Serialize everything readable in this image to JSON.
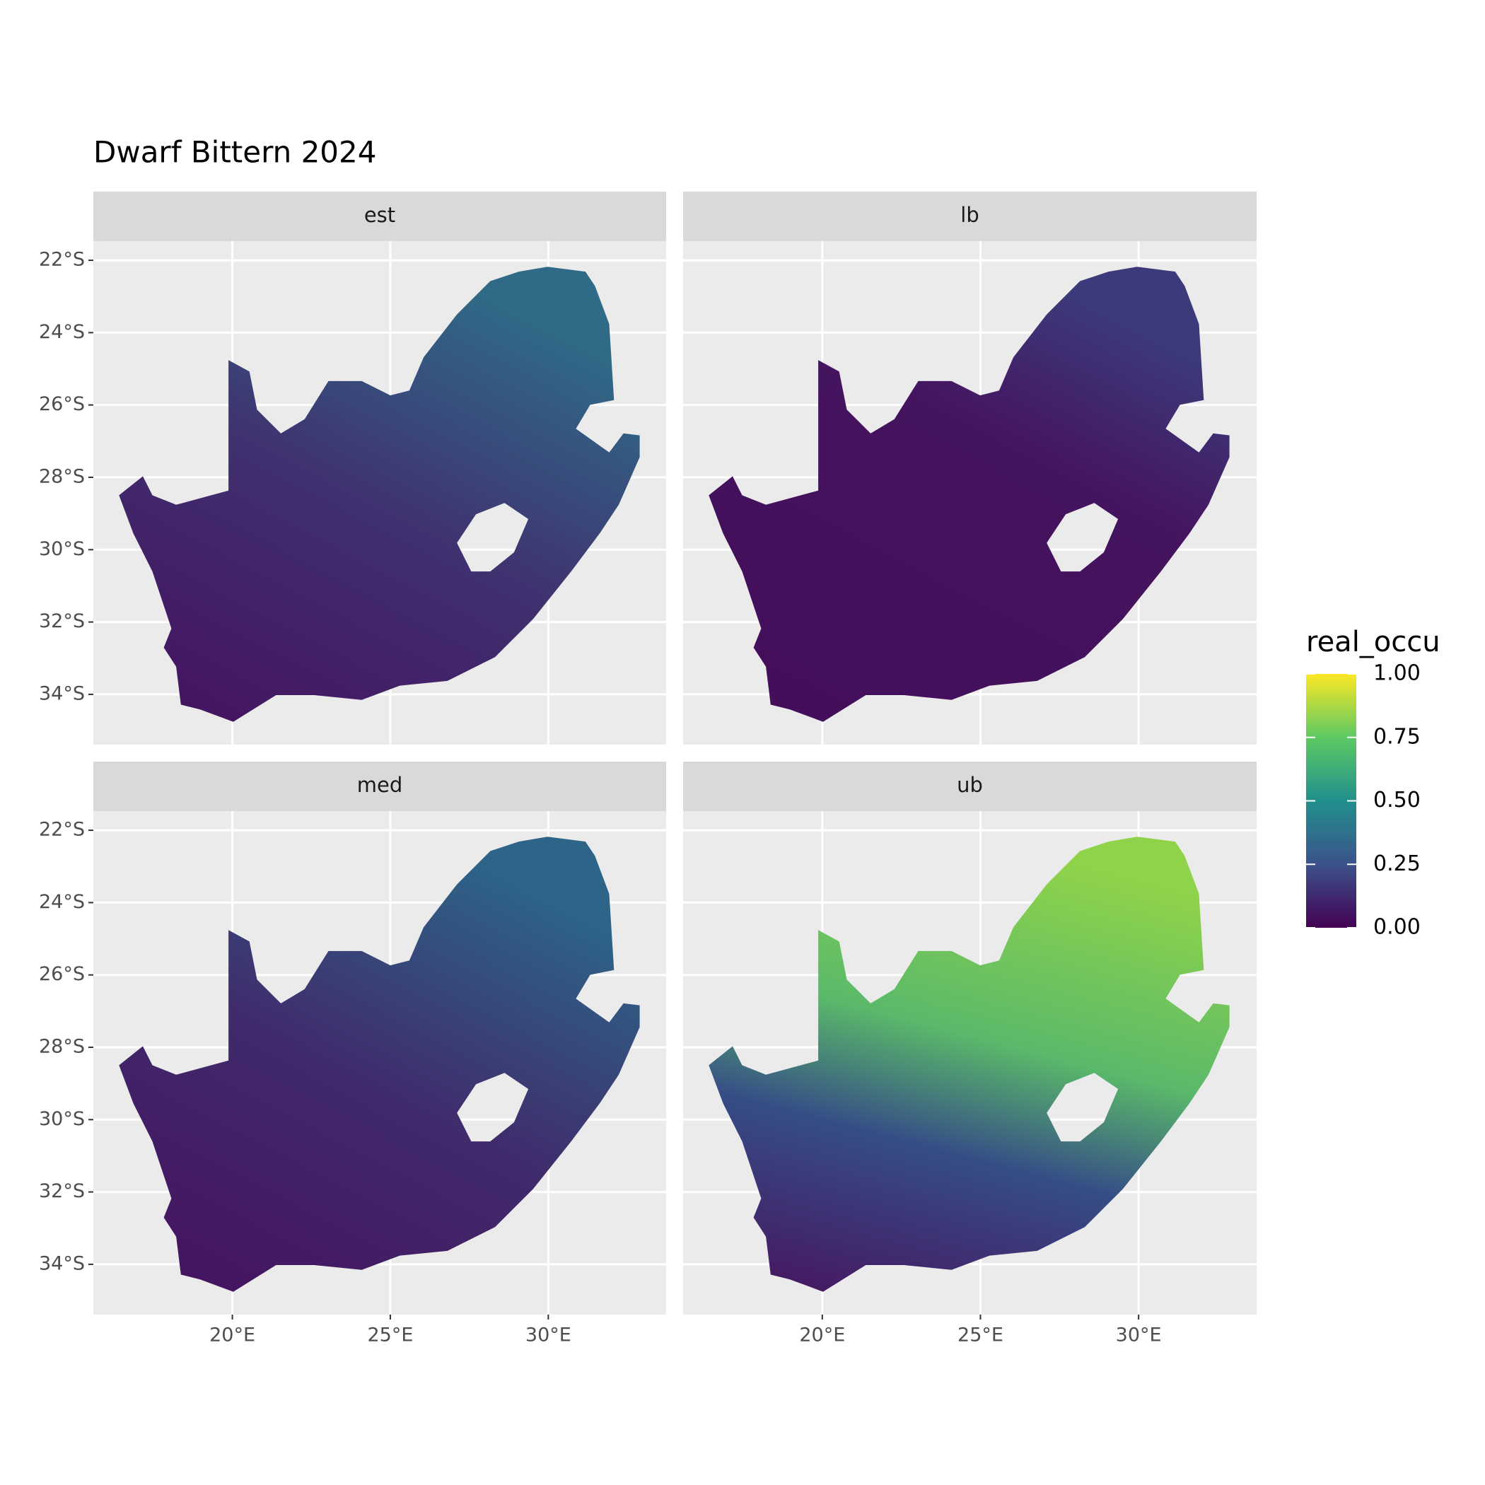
{
  "chart_data": {
    "type": "raster",
    "title": "Dwarf Bittern 2024",
    "facets": [
      "est",
      "lb",
      "med",
      "ub"
    ],
    "xlim": [
      15.6,
      33.73
    ],
    "ylim": [
      -35.39,
      -21.47
    ],
    "xticks": [
      {
        "value": 20,
        "label": "20°E"
      },
      {
        "value": 25,
        "label": "25°E"
      },
      {
        "value": 30,
        "label": "30°E"
      }
    ],
    "yticks": [
      {
        "value": -22,
        "label": "22°S"
      },
      {
        "value": -24,
        "label": "24°S"
      },
      {
        "value": -26,
        "label": "26°S"
      },
      {
        "value": -28,
        "label": "28°S"
      },
      {
        "value": -30,
        "label": "30°S"
      },
      {
        "value": -32,
        "label": "32°S"
      },
      {
        "value": -34,
        "label": "34°S"
      }
    ],
    "grid": true,
    "legend": {
      "title": "real_occu",
      "lim": [
        0,
        1
      ],
      "ticks": [
        {
          "value": 0,
          "label": "0.00"
        },
        0.25,
        {
          "value": 0.5,
          "label": "0.50"
        },
        0.75,
        {
          "value": 1,
          "label": "1.00"
        }
      ],
      "colors": [
        "#440154",
        "#3b528b",
        "#21908c",
        "#5dc963",
        "#fde725"
      ]
    }
  }
}
